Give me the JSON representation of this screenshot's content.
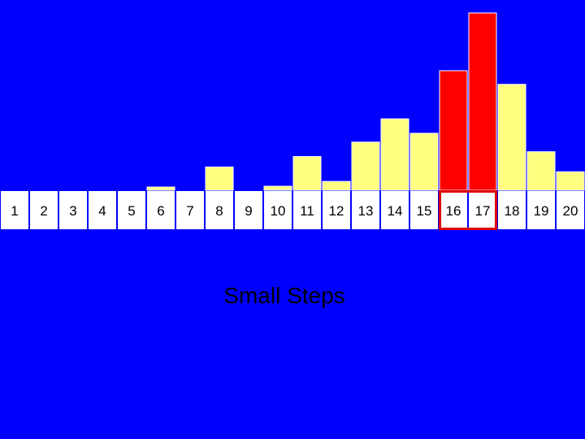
{
  "slide": {
    "caption": "Small Steps"
  },
  "colors": {
    "background": "#0000FF",
    "bar": "#FFFF80",
    "highlight": "#FF0000",
    "label_box": "#FFFFFF",
    "highlight_outline": "#E00000",
    "text": "#000000"
  },
  "chart_data": {
    "type": "bar",
    "categories": [
      "1",
      "2",
      "3",
      "4",
      "5",
      "6",
      "7",
      "8",
      "9",
      "10",
      "11",
      "12",
      "13",
      "14",
      "15",
      "16",
      "17",
      "18",
      "19",
      "20"
    ],
    "values": [
      0,
      0,
      0,
      0,
      0,
      4,
      0,
      29,
      0,
      5,
      42,
      11,
      60,
      89,
      71,
      149,
      221,
      132,
      48,
      23
    ],
    "highlighted": [
      "16",
      "17"
    ],
    "ylim": [
      0,
      225
    ],
    "grid": false,
    "title": "",
    "xlabel": "",
    "ylabel": ""
  }
}
